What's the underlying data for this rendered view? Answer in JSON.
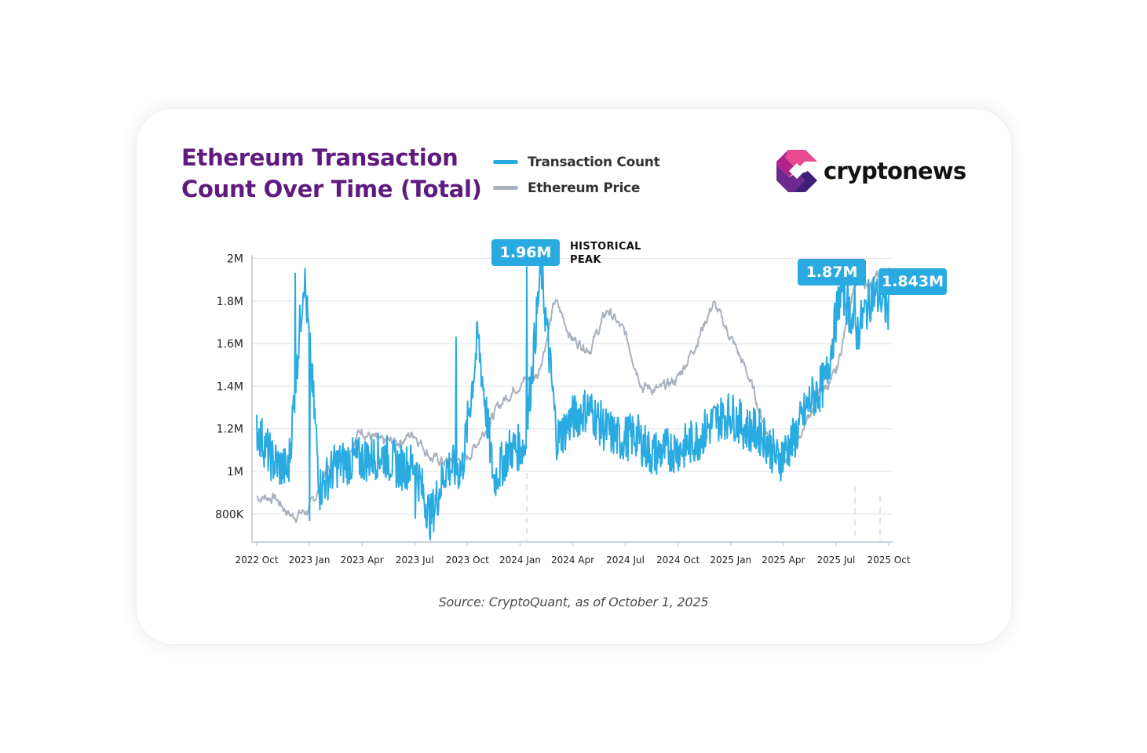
{
  "header": {
    "title_line1": "Ethereum Transaction",
    "title_line2": "Count Over Time (Total)",
    "title_color": "#5f1a80"
  },
  "legend": {
    "items": [
      {
        "label": "Transaction Count",
        "color": "#29abe2"
      },
      {
        "label": "Ethereum Price",
        "color": "#a9b1bf"
      }
    ]
  },
  "brand": {
    "name": "cryptonews",
    "logo_colors": {
      "pink": "#e8498f",
      "magenta": "#b0248a",
      "purple": "#6b2a8c",
      "indigo": "#3d1f7a"
    }
  },
  "annotations": [
    {
      "label": "1.96M",
      "note_line1": "HISTORICAL",
      "note_line2": "PEAK",
      "date": "2024 Jan"
    },
    {
      "label": "1.87M",
      "date": "2025 Aug"
    },
    {
      "label": "1.843M",
      "date": "2025 Sep"
    }
  ],
  "source": "Source: CryptoQuant, as of October 1, 2025",
  "chart_data": {
    "type": "line",
    "title": "Ethereum Transaction Count Over Time (Total)",
    "xlabel": "",
    "ylabel": "",
    "ylim": [
      680000,
      2000000
    ],
    "yticks": [
      "800K",
      "1M",
      "1.2M",
      "1.4M",
      "1.6M",
      "1.8M",
      "2M"
    ],
    "ytick_values": [
      800000,
      1000000,
      1200000,
      1400000,
      1600000,
      1800000,
      2000000
    ],
    "xticks": [
      "2022 Oct",
      "2023 Jan",
      "2023 Apr",
      "2023 Jul",
      "2023 Oct",
      "2024 Jan",
      "2024 Apr",
      "2024 Jul",
      "2024 Oct",
      "2025 Jan",
      "2025 Apr",
      "2025 Jul",
      "2025 Oct"
    ],
    "grid": true,
    "legend_position": "top",
    "series": [
      {
        "name": "Transaction Count",
        "color": "#29abe2",
        "x": [
          "2022 Oct",
          "2022 Nov",
          "2022 Dec",
          "2022 Dec (spike)",
          "2023 Jan",
          "2023 Feb",
          "2023 Mar",
          "2023 Apr",
          "2023 May",
          "2023 Jun",
          "2023 Jul",
          "2023 Jul (dip)",
          "2023 Aug",
          "2023 Sep",
          "2023 Oct (spike)",
          "2023 Oct",
          "2023 Nov",
          "2023 Dec",
          "2024 Jan (peak)",
          "2024 Feb",
          "2024 Mar",
          "2024 Apr",
          "2024 May",
          "2024 Jun",
          "2024 Jul",
          "2024 Aug",
          "2024 Sep",
          "2024 Oct",
          "2024 Nov",
          "2024 Dec",
          "2025 Jan",
          "2025 Feb",
          "2025 Mar",
          "2025 Apr",
          "2025 May",
          "2025 Jun",
          "2025 Jul",
          "2025 Aug (1.87M)",
          "2025 Aug",
          "2025 Sep (1.843M)",
          "2025 Oct"
        ],
        "values": [
          1200000,
          1050000,
          1000000,
          1930000,
          920000,
          1030000,
          1050000,
          1060000,
          1080000,
          1020000,
          1030000,
          780000,
          1020000,
          1010000,
          1630000,
          960000,
          1100000,
          1120000,
          1960000,
          1150000,
          1250000,
          1300000,
          1200000,
          1150000,
          1170000,
          1080000,
          1100000,
          1110000,
          1160000,
          1240000,
          1270000,
          1200000,
          1180000,
          1050000,
          1150000,
          1330000,
          1420000,
          1870000,
          1650000,
          1843000,
          1750000
        ]
      },
      {
        "name": "Ethereum Price",
        "color": "#a9b1bf",
        "x": [
          "2022 Oct",
          "2022 Nov",
          "2022 Dec",
          "2023 Jan",
          "2023 Feb",
          "2023 Mar",
          "2023 Apr",
          "2023 May",
          "2023 Jun",
          "2023 Jul",
          "2023 Aug",
          "2023 Sep",
          "2023 Oct",
          "2023 Nov",
          "2023 Dec",
          "2024 Jan",
          "2024 Feb",
          "2024 Mar",
          "2024 Apr",
          "2024 May",
          "2024 Jun",
          "2024 Jul",
          "2024 Aug",
          "2024 Sep",
          "2024 Oct",
          "2024 Nov",
          "2024 Dec",
          "2025 Jan",
          "2025 Feb",
          "2025 Mar",
          "2025 Apr",
          "2025 May",
          "2025 Jun",
          "2025 Jul",
          "2025 Aug",
          "2025 Sep",
          "2025 Oct"
        ],
        "values": [
          880000,
          880000,
          790000,
          820000,
          1000000,
          1080000,
          1200000,
          1130000,
          1140000,
          1180000,
          1060000,
          1040000,
          1060000,
          1200000,
          1330000,
          1420000,
          1450000,
          1800000,
          1620000,
          1580000,
          1760000,
          1640000,
          1400000,
          1380000,
          1440000,
          1600000,
          1790000,
          1630000,
          1450000,
          1200000,
          1020000,
          1180000,
          1360000,
          1450000,
          1870000,
          1880000,
          1940000
        ]
      }
    ]
  }
}
